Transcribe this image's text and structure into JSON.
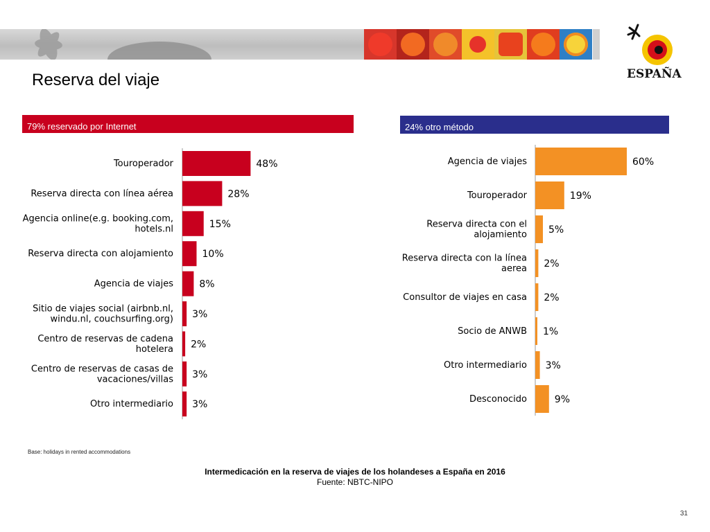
{
  "slide": {
    "title": "Reserva del viaje",
    "base_note": "Base: holidays in rented accommodations",
    "caption_title": "Intermedicación en la reserva de viajes de los holandeses a España en  2016",
    "caption_source": "Fuente: NBTC-NIPO",
    "page_number": "31",
    "logo_text": "ESPAÑA"
  },
  "colors": {
    "left_bar": "#c8001e",
    "right_bar": "#f39124",
    "left_header_bg": "#c8001e",
    "right_header_bg": "#2a2e8c"
  },
  "chart_data": [
    {
      "type": "bar",
      "orientation": "horizontal",
      "title": "79% reservado por Internet",
      "unit": "%",
      "categories": [
        [
          "Touroperador"
        ],
        [
          "Reserva directa con línea aérea"
        ],
        [
          "Agencia online(e.g. booking.com,",
          "hotels.nl"
        ],
        [
          "Reserva directa con alojamiento"
        ],
        [
          "Agencia de viajes"
        ],
        [
          "Sitio de viajes social (airbnb.nl,",
          "windu.nl, couchsurfing.org)"
        ],
        [
          "Centro de reservas de cadena",
          "hotelera"
        ],
        [
          "Centro de reservas de casas de",
          "vacaciones/villas"
        ],
        [
          "Otro intermediario"
        ]
      ],
      "values": [
        48,
        28,
        15,
        10,
        8,
        3,
        2,
        3,
        3
      ],
      "value_labels": [
        "48%",
        "28%",
        "15%",
        "10%",
        "8%",
        "3%",
        "2%",
        "3%",
        "3%"
      ],
      "xlim": [
        0,
        100
      ],
      "grid": false,
      "legend": "none"
    },
    {
      "type": "bar",
      "orientation": "horizontal",
      "title": "24% otro método",
      "unit": "%",
      "categories": [
        [
          "Agencia de viajes"
        ],
        [
          "Touroperador"
        ],
        [
          "Reserva directa con el",
          "alojamiento"
        ],
        [
          "Reserva directa con la línea",
          "aerea"
        ],
        [
          "Consultor de viajes en casa"
        ],
        [
          "Socio de ANWB"
        ],
        [
          "Otro intermediario"
        ],
        [
          "Desconocido"
        ]
      ],
      "values": [
        60,
        19,
        5,
        2,
        2,
        1,
        3,
        9
      ],
      "value_labels": [
        "60%",
        "19%",
        "5%",
        "2%",
        "2%",
        "1%",
        "3%",
        "9%"
      ],
      "xlim": [
        0,
        100
      ],
      "grid": false,
      "legend": "none"
    }
  ]
}
